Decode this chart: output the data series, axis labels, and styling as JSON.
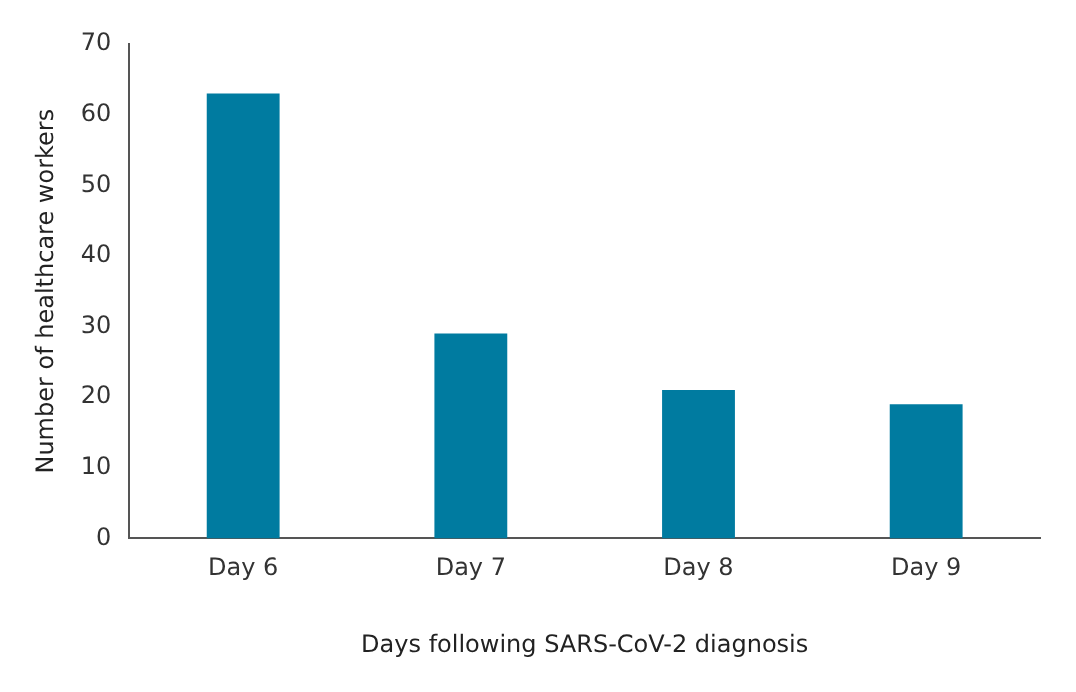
{
  "chart_data": {
    "type": "bar",
    "xlabel": "Days following SARS-CoV-2 diagnosis",
    "ylabel": "Number of healthcare workers",
    "categories": [
      "Day 6",
      "Day 7",
      "Day 8",
      "Day 9"
    ],
    "values": [
      63,
      29,
      21,
      19
    ],
    "color": "#007ba0",
    "ylim": [
      0,
      70
    ],
    "yticks": [
      0,
      10,
      20,
      30,
      40,
      50,
      60,
      70
    ],
    "grid": false,
    "legend": false
  }
}
